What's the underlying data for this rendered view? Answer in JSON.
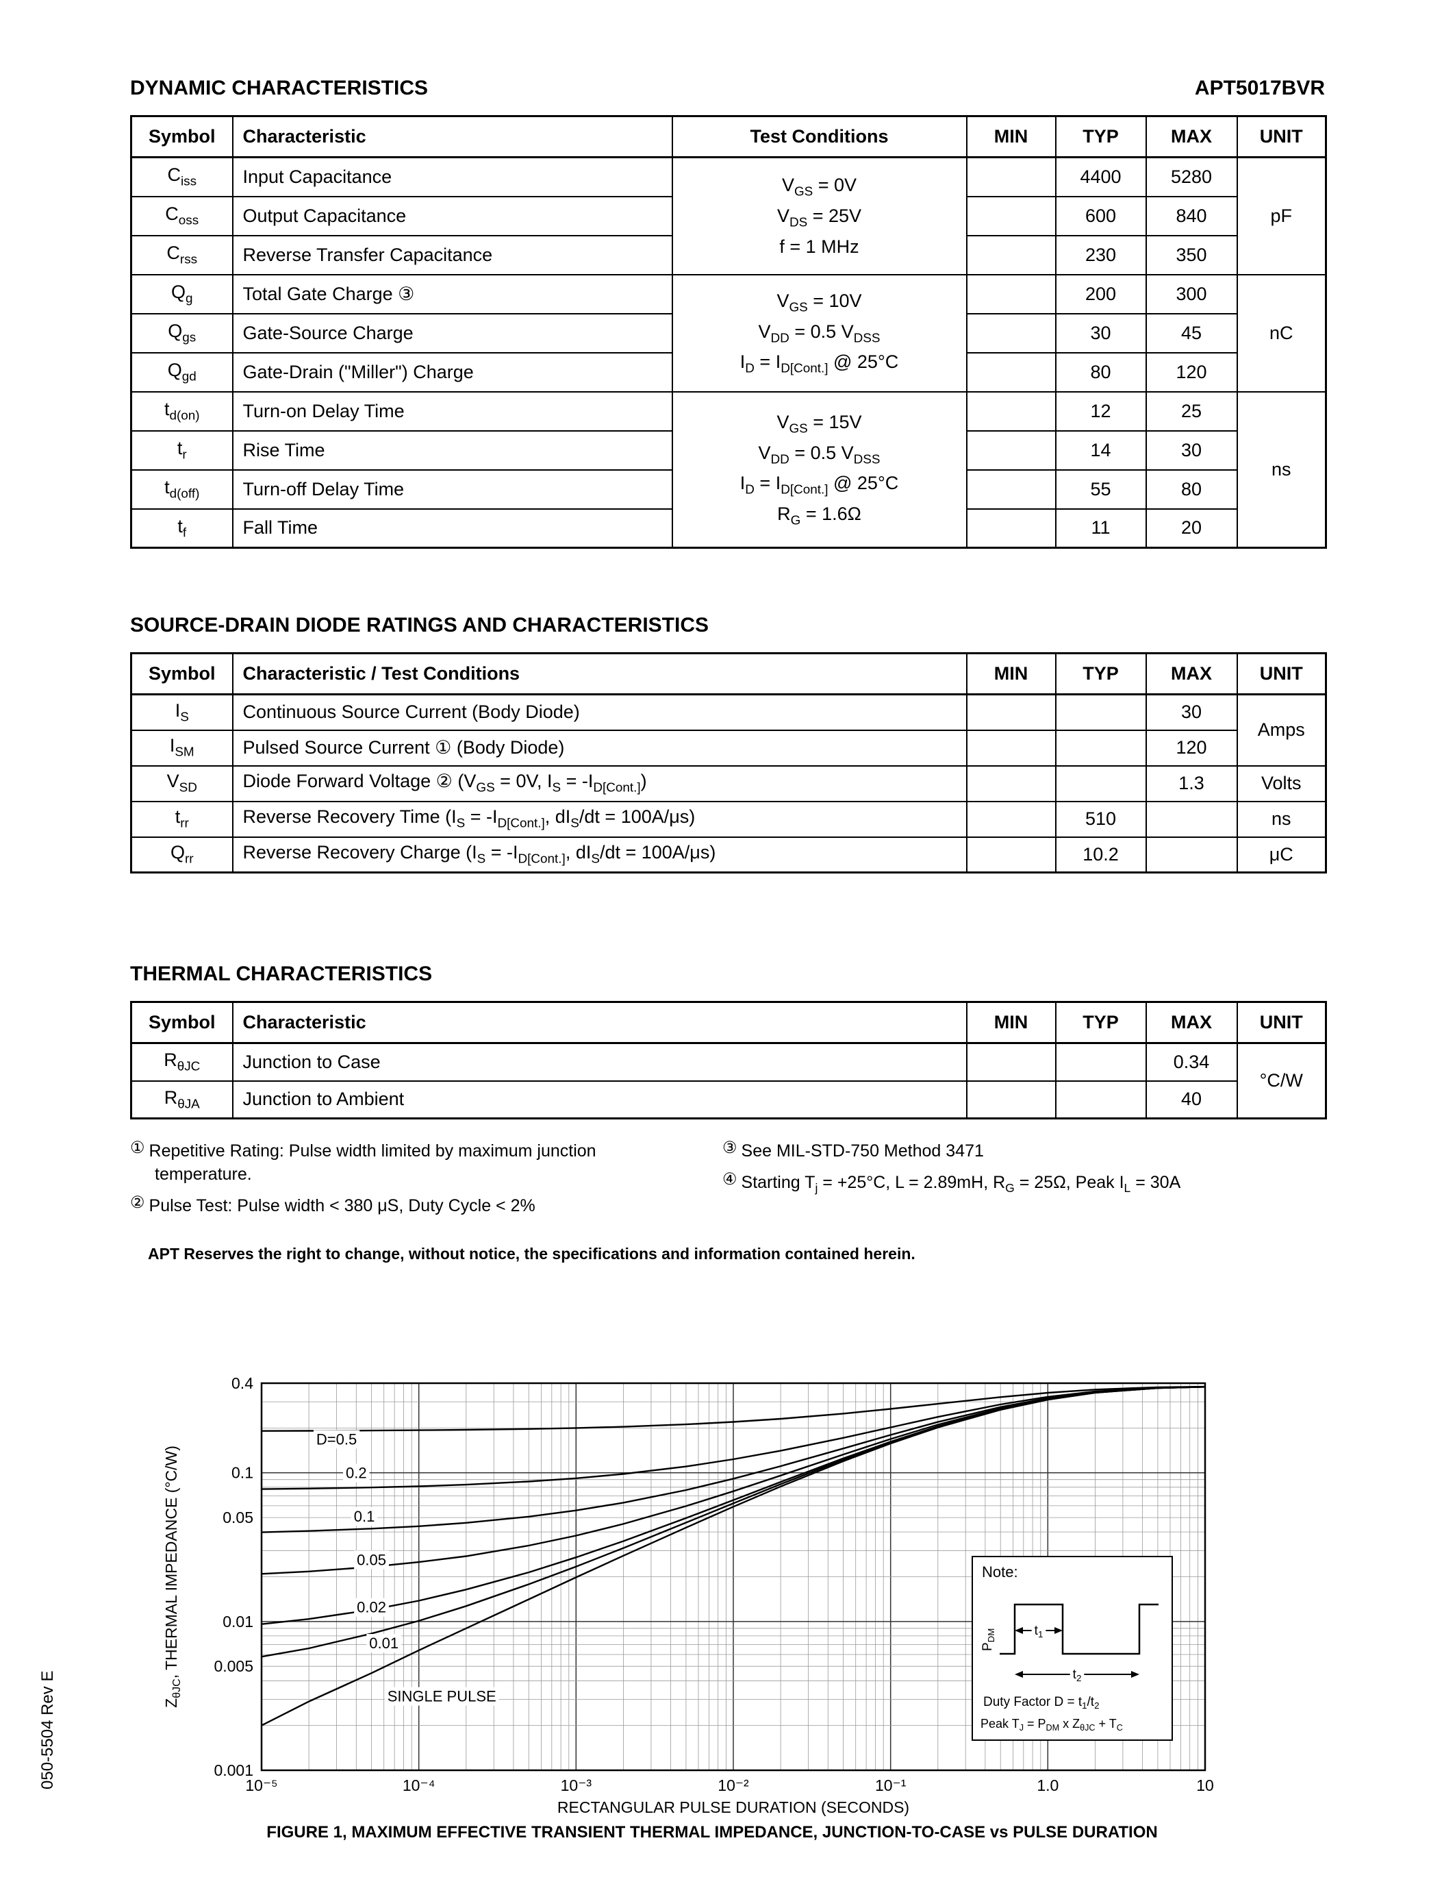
{
  "page": {
    "header_left": "DYNAMIC CHARACTERISTICS",
    "header_right": "APT5017BVR",
    "side_label": "050-5504 Rev E",
    "disclaimer": "APT Reserves the right to change, without notice, the specifications and information contained herein."
  },
  "sections": {
    "diode_title": "SOURCE-DRAIN DIODE RATINGS AND CHARACTERISTICS",
    "thermal_title": "THERMAL CHARACTERISTICS"
  },
  "dynamic_table": {
    "headers": [
      "Symbol",
      "Characteristic",
      "Test Conditions",
      "MIN",
      "TYP",
      "MAX",
      "UNIT"
    ],
    "groups": [
      {
        "conditions": "V~GS~ = 0V\nV~DS~ = 25V\nf = 1 MHz",
        "unit": "pF"
      },
      {
        "conditions": "V~GS~ = 10V\nV~DD~ = 0.5 V~DSS~\nI~D~ = I~D[Cont.]~ @ 25°C",
        "unit": "nC"
      },
      {
        "conditions": "V~GS~ = 15V\nV~DD~ = 0.5 V~DSS~\nI~D~ = I~D[Cont.]~ @ 25°C\nR~G~ = 1.6Ω",
        "unit": "ns"
      }
    ],
    "rows": [
      {
        "symbol": "C~iss~",
        "characteristic": "Input Capacitance",
        "min": "",
        "typ": "4400",
        "max": "5280"
      },
      {
        "symbol": "C~oss~",
        "characteristic": "Output Capacitance",
        "min": "",
        "typ": "600",
        "max": "840"
      },
      {
        "symbol": "C~rss~",
        "characteristic": "Reverse Transfer Capacitance",
        "min": "",
        "typ": "230",
        "max": "350"
      },
      {
        "symbol": "Q~g~",
        "characteristic": "Total Gate Charge ③",
        "min": "",
        "typ": "200",
        "max": "300"
      },
      {
        "symbol": "Q~gs~",
        "characteristic": "Gate-Source Charge",
        "min": "",
        "typ": "30",
        "max": "45"
      },
      {
        "symbol": "Q~gd~",
        "characteristic": "Gate-Drain (\"Miller\") Charge",
        "min": "",
        "typ": "80",
        "max": "120"
      },
      {
        "symbol": "t~d(on)~",
        "characteristic": "Turn-on Delay Time",
        "min": "",
        "typ": "12",
        "max": "25"
      },
      {
        "symbol": "t~r~",
        "characteristic": "Rise Time",
        "min": "",
        "typ": "14",
        "max": "30"
      },
      {
        "symbol": "t~d(off)~",
        "characteristic": "Turn-off Delay Time",
        "min": "",
        "typ": "55",
        "max": "80"
      },
      {
        "symbol": "t~f~",
        "characteristic": "Fall Time",
        "min": "",
        "typ": "11",
        "max": "20"
      }
    ]
  },
  "diode_table": {
    "headers": [
      "Symbol",
      "Characteristic / Test Conditions",
      "MIN",
      "TYP",
      "MAX",
      "UNIT"
    ],
    "amps_unit": "Amps",
    "rows": [
      {
        "symbol": "I~S~",
        "text": "Continuous Source Current  (Body Diode)",
        "min": "",
        "typ": "",
        "max": "30",
        "unit": ""
      },
      {
        "symbol": "I~SM~",
        "text": "Pulsed Source Current ①  (Body Diode)",
        "min": "",
        "typ": "",
        "max": "120",
        "unit": ""
      },
      {
        "symbol": "V~SD~",
        "text": "Diode Forward Voltage ②  (V~GS~ = 0V, I~S~ = -I~D[Cont.]~)",
        "min": "",
        "typ": "",
        "max": "1.3",
        "unit": "Volts"
      },
      {
        "symbol": "t~rr~",
        "text": "Reverse Recovery Time  (I~S~ = -I~D[Cont.]~, dI~S~/dt = 100A/μs)",
        "min": "",
        "typ": "510",
        "max": "",
        "unit": "ns"
      },
      {
        "symbol": "Q~rr~",
        "text": "Reverse Recovery Charge  (I~S~ = -I~D[Cont.]~, dI~S~/dt = 100A/μs)",
        "min": "",
        "typ": "10.2",
        "max": "",
        "unit": "μC"
      }
    ]
  },
  "thermal_table": {
    "headers": [
      "Symbol",
      "Characteristic",
      "MIN",
      "TYP",
      "MAX",
      "UNIT"
    ],
    "unit": "°C/W",
    "rows": [
      {
        "symbol": "R~θJC~",
        "text": "Junction to Case",
        "min": "",
        "typ": "",
        "max": "0.34"
      },
      {
        "symbol": "R~θJA~",
        "text": "Junction to Ambient",
        "min": "",
        "typ": "",
        "max": "40"
      }
    ]
  },
  "footnotes": {
    "left": [
      {
        "mark": "①",
        "text": "Repetitive Rating: Pulse width limited by maximum junction temperature."
      },
      {
        "mark": "②",
        "text": "Pulse Test: Pulse width < 380 μS, Duty Cycle < 2%"
      }
    ],
    "right": [
      {
        "mark": "③",
        "text": "See MIL-STD-750 Method 3471"
      },
      {
        "mark": "④",
        "text": "Starting T~j~ = +25°C, L = 2.89mH, R~G~ = 25Ω, Peak I~L~ = 30A"
      }
    ]
  },
  "chart_data": {
    "type": "line",
    "title": "FIGURE 1, MAXIMUM EFFECTIVE TRANSIENT THERMAL IMPEDANCE, JUNCTION-TO-CASE vs PULSE DURATION",
    "xlabel": "RECTANGULAR PULSE DURATION (SECONDS)",
    "ylabel": "Z~θJC~, THERMAL IMPEDANCE (°C/W)",
    "xscale": "log",
    "yscale": "log",
    "xlim": [
      1e-05,
      10
    ],
    "ylim": [
      0.001,
      0.4
    ],
    "grid": true,
    "x_ticks": [
      {
        "v": 1e-05,
        "label": "10⁻⁵"
      },
      {
        "v": 0.0001,
        "label": "10⁻⁴"
      },
      {
        "v": 0.001,
        "label": "10⁻³"
      },
      {
        "v": 0.01,
        "label": "10⁻²"
      },
      {
        "v": 0.1,
        "label": "10⁻¹"
      },
      {
        "v": 1,
        "label": "1.0"
      },
      {
        "v": 10,
        "label": "10"
      }
    ],
    "y_ticks": [
      {
        "v": 0.4,
        "label": "0.4"
      },
      {
        "v": 0.1,
        "label": "0.1"
      },
      {
        "v": 0.05,
        "label": "0.05"
      },
      {
        "v": 0.01,
        "label": "0.01"
      },
      {
        "v": 0.005,
        "label": "0.005"
      },
      {
        "v": 0.001,
        "label": "0.001"
      }
    ],
    "x": [
      1e-05,
      2e-05,
      5e-05,
      0.0001,
      0.0002,
      0.0005,
      0.001,
      0.002,
      0.005,
      0.01,
      0.02,
      0.05,
      0.1,
      0.2,
      0.5,
      1,
      2,
      5,
      10
    ],
    "series": [
      {
        "name": "D=0.5",
        "label": {
          "text": "D=0.5",
          "x": 3e-05,
          "y": 0.155
        },
        "values": [
          0.191,
          0.1914,
          0.1923,
          0.1932,
          0.1945,
          0.197,
          0.1999,
          0.2038,
          0.2114,
          0.2196,
          0.2304,
          0.2498,
          0.2687,
          0.2908,
          0.3225,
          0.3449,
          0.3626,
          0.3757,
          0.3791
        ]
      },
      {
        "name": "0.2",
        "label": {
          "text": "0.2",
          "x": 4e-05,
          "y": 0.092
        },
        "values": [
          0.0776,
          0.0783,
          0.0796,
          0.0811,
          0.0832,
          0.0873,
          0.0918,
          0.0981,
          0.1102,
          0.1233,
          0.1406,
          0.1717,
          0.2019,
          0.2373,
          0.288,
          0.3239,
          0.3521,
          0.3731,
          0.3786
        ]
      },
      {
        "name": "0.1",
        "label": {
          "text": "0.1",
          "x": 4.5e-05,
          "y": 0.047
        },
        "values": [
          0.0398,
          0.0406,
          0.0421,
          0.0437,
          0.0461,
          0.0507,
          0.0558,
          0.0629,
          0.0765,
          0.0912,
          0.1107,
          0.1456,
          0.1796,
          0.2194,
          0.2765,
          0.3169,
          0.3487,
          0.3722,
          0.3784
        ]
      },
      {
        "name": "0.05",
        "label": {
          "text": "0.05",
          "x": 5e-05,
          "y": 0.024
        },
        "values": [
          0.0209,
          0.0217,
          0.0233,
          0.0251,
          0.0275,
          0.0324,
          0.0378,
          0.0453,
          0.0597,
          0.0751,
          0.0958,
          0.1326,
          0.1685,
          0.2105,
          0.2708,
          0.3134,
          0.3469,
          0.3718,
          0.3783
        ]
      },
      {
        "name": "0.02",
        "label": {
          "text": "0.02",
          "x": 5e-05,
          "y": 0.0115
        },
        "values": [
          0.0096,
          0.0104,
          0.012,
          0.0138,
          0.0164,
          0.0214,
          0.027,
          0.0347,
          0.0496,
          0.0655,
          0.0868,
          0.1248,
          0.1618,
          0.2051,
          0.2673,
          0.3113,
          0.3459,
          0.3715,
          0.3782
        ]
      },
      {
        "name": "0.01",
        "label": {
          "text": "0.01",
          "x": 6e-05,
          "y": 0.0066
        },
        "values": [
          0.0058,
          0.0066,
          0.0083,
          0.0101,
          0.0127,
          0.0178,
          0.0234,
          0.0312,
          0.0462,
          0.0623,
          0.0838,
          0.1222,
          0.1596,
          0.2034,
          0.2662,
          0.3107,
          0.3455,
          0.3714,
          0.3782
        ]
      },
      {
        "name": "SINGLE PULSE",
        "label": {
          "text": "SINGLE PULSE",
          "x": 0.00014,
          "y": 0.0029
        },
        "values": [
          0.002,
          0.0029,
          0.0045,
          0.0064,
          0.009,
          0.0141,
          0.0198,
          0.0277,
          0.0428,
          0.0591,
          0.0808,
          0.1196,
          0.1573,
          0.2016,
          0.265,
          0.3099,
          0.3452,
          0.3713,
          0.3782
        ]
      }
    ],
    "note_box": {
      "title": "Note:",
      "pdm_label": "P~DM~",
      "t1_label": "t~1~",
      "t2_label": "t~2~",
      "duty_line": "Duty Factor  D = t~1~/t~2~",
      "peak_line": "Peak T~J~ = P~DM~ x Z~θJC~ + T~C~"
    }
  }
}
